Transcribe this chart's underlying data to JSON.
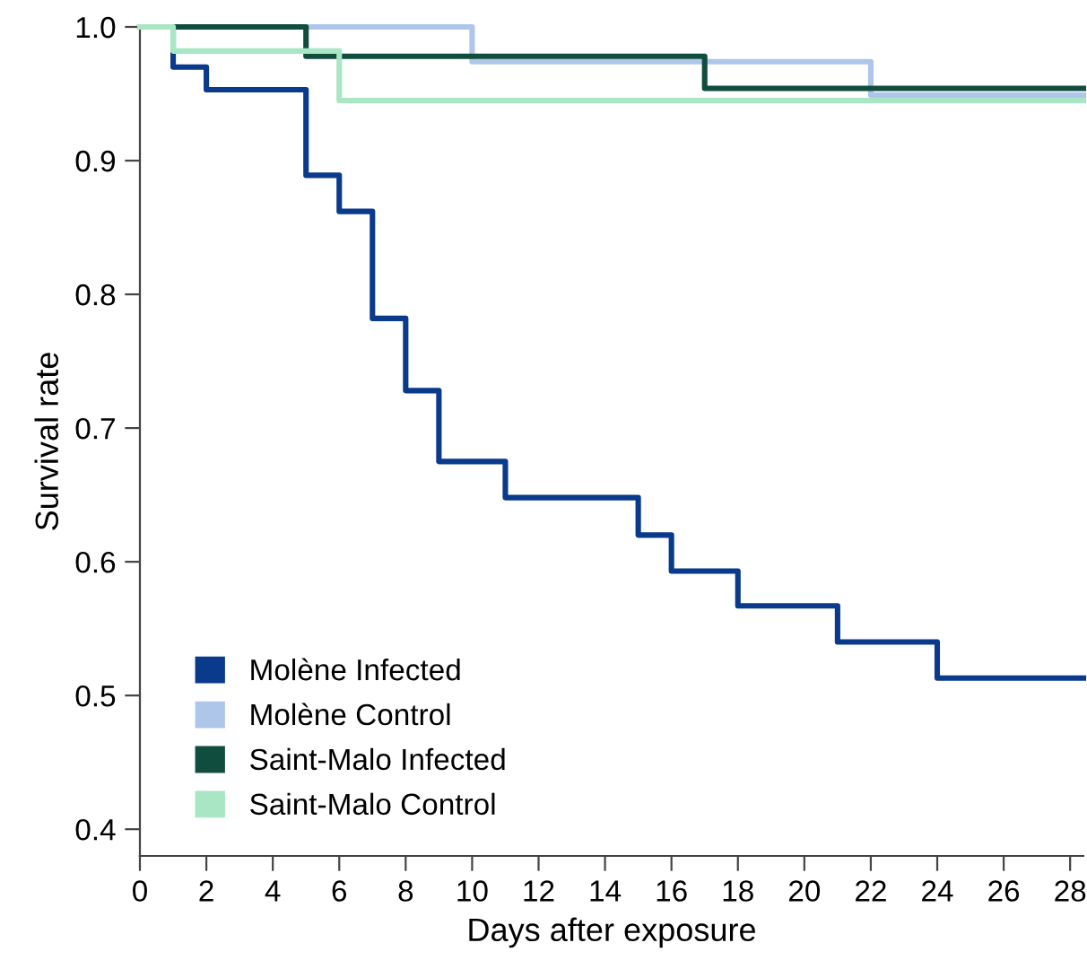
{
  "chart_data": {
    "type": "step",
    "xlabel": "Days after exposure",
    "ylabel": "Survival rate",
    "xlim": [
      0,
      28.4
    ],
    "ylim": [
      0.38,
      1.0
    ],
    "xticks": [
      0,
      2,
      4,
      6,
      8,
      10,
      12,
      14,
      16,
      18,
      20,
      22,
      24,
      26,
      28
    ],
    "yticks": [
      0.4,
      0.5,
      0.6,
      0.7,
      0.8,
      0.9,
      {
        "value": 1.0,
        "label": "1.0"
      }
    ],
    "grid": false,
    "legend": "bottom left",
    "marker": "none",
    "line_style": "solid",
    "series": [
      {
        "name": "Molène Infected",
        "color": "#0a3a8c",
        "x": [
          0,
          1,
          2,
          5,
          6,
          7,
          8,
          9,
          11,
          15,
          16,
          18,
          21,
          24,
          28.4
        ],
        "values": [
          1.0,
          0.97,
          0.953,
          0.889,
          0.862,
          0.782,
          0.728,
          0.675,
          0.648,
          0.62,
          0.593,
          0.567,
          0.54,
          0.513,
          0.513
        ]
      },
      {
        "name": "Molène Control",
        "color": "#aec6ea",
        "x": [
          0,
          10,
          22,
          28.4
        ],
        "values": [
          1.0,
          0.974,
          0.949,
          0.949
        ]
      },
      {
        "name": "Saint-Malo Infected",
        "color": "#114d3f",
        "x": [
          0,
          5,
          17,
          28.4
        ],
        "values": [
          1.0,
          0.978,
          0.954,
          0.954
        ]
      },
      {
        "name": "Saint-Malo Control",
        "color": "#a8e6c4",
        "x": [
          0,
          1,
          6,
          28.4
        ],
        "values": [
          1.0,
          0.982,
          0.945,
          0.945
        ]
      }
    ]
  }
}
